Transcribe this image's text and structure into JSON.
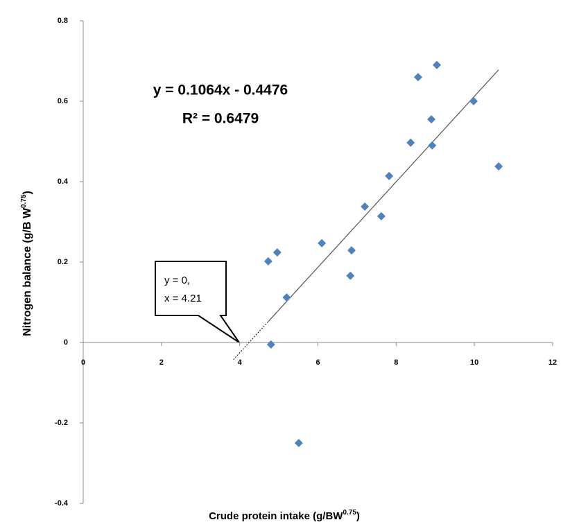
{
  "chart_data": {
    "type": "scatter",
    "equation": "y = 0.1064x - 0.4476",
    "r_squared": "R² = 0.6479",
    "callout": [
      "y = 0,",
      "x = 4.21"
    ],
    "x_label": {
      "text": "Crude protein intake (g/BW",
      "sup": "0.75",
      "end": ")"
    },
    "y_label": {
      "text": "Nitrogen balance (g/B W",
      "sup": "0.75",
      "end": ")"
    },
    "x": [
      4.73,
      4.96,
      4.8,
      5.2,
      5.51,
      6.1,
      6.86,
      6.83,
      7.2,
      7.62,
      7.82,
      8.37,
      8.56,
      8.9,
      8.92,
      9.04,
      9.98,
      10.62
    ],
    "values": [
      0.202,
      0.224,
      -0.005,
      0.112,
      -0.25,
      0.247,
      0.229,
      0.166,
      0.338,
      0.314,
      0.414,
      0.497,
      0.66,
      0.555,
      0.49,
      0.69,
      0.6,
      0.438
    ],
    "color": "#4f81bd",
    "xlim": [
      0,
      12
    ],
    "xticks": [
      0,
      2,
      4,
      6,
      8,
      10,
      12
    ],
    "ylim": [
      -0.4,
      0.8
    ],
    "yticks": [
      -0.4,
      -0.2,
      0,
      0.2,
      0.4,
      0.6,
      0.8
    ],
    "trendline": true
  }
}
